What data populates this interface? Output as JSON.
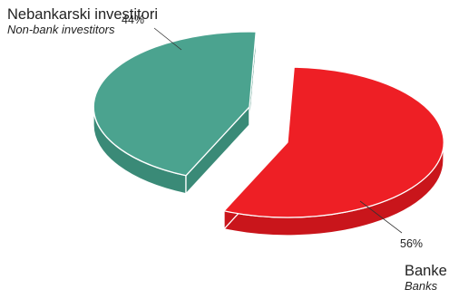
{
  "chart_data": {
    "type": "pie",
    "categories": [
      "Nebankarski investitori",
      "Banke"
    ],
    "categories_en": [
      "Non-bank investitors",
      "Banks"
    ],
    "values": [
      44,
      56
    ],
    "value_labels": [
      "44%",
      "56%"
    ],
    "colors": {
      "nonbank_top": "#4ba38f",
      "nonbank_side": "#3a8a77",
      "bank_top": "#ee1f25",
      "bank_side": "#c9151b"
    },
    "style": "3d-exploded"
  },
  "labels": {
    "nonbank": {
      "main": "Nebankarski investitori",
      "sub": "Non-bank investitors"
    },
    "bank": {
      "main": "Banke",
      "sub": "Banks"
    }
  }
}
